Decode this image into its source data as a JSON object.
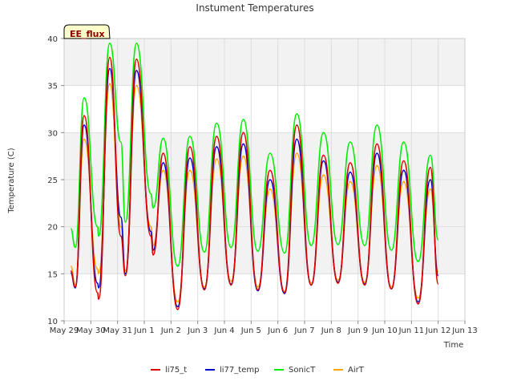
{
  "chart_data": {
    "type": "line",
    "title": "Instument Temperatures",
    "xlabel": "Time",
    "ylabel": "Temperature (C)",
    "badge": "EE_flux",
    "ylim": [
      10,
      40
    ],
    "xlim": [
      "2024-05-29",
      "2024-06-13"
    ],
    "yticks": [
      10,
      15,
      20,
      25,
      30,
      35,
      40
    ],
    "xticks": [
      {
        "date": "2024-05-29",
        "label": "May 29"
      },
      {
        "date": "2024-05-30",
        "label": "May 30"
      },
      {
        "date": "2024-05-31",
        "label": "May 31"
      },
      {
        "date": "2024-06-01",
        "label": "Jun 1"
      },
      {
        "date": "2024-06-02",
        "label": "Jun 2"
      },
      {
        "date": "2024-06-03",
        "label": "Jun 3"
      },
      {
        "date": "2024-06-04",
        "label": "Jun 4"
      },
      {
        "date": "2024-06-05",
        "label": "Jun 5"
      },
      {
        "date": "2024-06-06",
        "label": "Jun 6"
      },
      {
        "date": "2024-06-07",
        "label": "Jun 7"
      },
      {
        "date": "2024-06-08",
        "label": "Jun 8"
      },
      {
        "date": "2024-06-09",
        "label": "Jun 9"
      },
      {
        "date": "2024-06-10",
        "label": "Jun 10"
      },
      {
        "date": "2024-06-11",
        "label": "Jun 11"
      },
      {
        "date": "2024-06-12",
        "label": "Jun 12"
      },
      {
        "date": "2024-06-13",
        "label": "Jun 13"
      }
    ],
    "grid": true,
    "legend_position": "bottom",
    "series": [
      {
        "name": "li75_t",
        "color": "#dd0000",
        "points": [
          [
            "2024-05-29 06:00",
            15.3
          ],
          [
            "2024-05-29 10:00",
            13.6
          ],
          [
            "2024-05-29 18:00",
            31.8
          ],
          [
            "2024-05-30 06:00",
            13.0
          ],
          [
            "2024-05-30 07:00",
            12.3
          ],
          [
            "2024-05-30 17:00",
            38.0
          ],
          [
            "2024-05-31 03:00",
            19.0
          ],
          [
            "2024-05-31 07:00",
            14.8
          ],
          [
            "2024-05-31 17:00",
            37.8
          ],
          [
            "2024-06-01 06:00",
            19.0
          ],
          [
            "2024-06-01 08:00",
            17.0
          ],
          [
            "2024-06-01 17:00",
            27.8
          ],
          [
            "2024-06-02 06:00",
            11.2
          ],
          [
            "2024-06-02 17:00",
            28.5
          ],
          [
            "2024-06-03 06:00",
            13.3
          ],
          [
            "2024-06-03 17:00",
            29.6
          ],
          [
            "2024-06-04 06:00",
            13.8
          ],
          [
            "2024-06-04 17:00",
            30.0
          ],
          [
            "2024-06-05 06:00",
            13.3
          ],
          [
            "2024-06-05 17:00",
            26.0
          ],
          [
            "2024-06-06 06:00",
            13.0
          ],
          [
            "2024-06-06 17:00",
            30.8
          ],
          [
            "2024-06-07 06:00",
            13.8
          ],
          [
            "2024-06-07 17:00",
            27.6
          ],
          [
            "2024-06-08 06:00",
            14.0
          ],
          [
            "2024-06-08 17:00",
            26.8
          ],
          [
            "2024-06-09 06:00",
            13.8
          ],
          [
            "2024-06-09 17:00",
            28.8
          ],
          [
            "2024-06-10 06:00",
            13.4
          ],
          [
            "2024-06-10 17:00",
            27.0
          ],
          [
            "2024-06-11 06:00",
            11.8
          ],
          [
            "2024-06-11 17:00",
            26.3
          ],
          [
            "2024-06-12 00:00",
            13.9
          ]
        ]
      },
      {
        "name": "li77_temp",
        "color": "#0000cc",
        "points": [
          [
            "2024-05-29 06:00",
            15.1
          ],
          [
            "2024-05-29 10:00",
            13.5
          ],
          [
            "2024-05-29 18:00",
            30.8
          ],
          [
            "2024-05-30 06:00",
            14.0
          ],
          [
            "2024-05-30 07:00",
            13.5
          ],
          [
            "2024-05-30 17:00",
            36.8
          ],
          [
            "2024-05-31 03:00",
            21.0
          ],
          [
            "2024-05-31 07:00",
            15.0
          ],
          [
            "2024-05-31 17:00",
            36.6
          ],
          [
            "2024-06-01 06:00",
            19.5
          ],
          [
            "2024-06-01 08:00",
            17.5
          ],
          [
            "2024-06-01 17:00",
            26.8
          ],
          [
            "2024-06-02 06:00",
            11.5
          ],
          [
            "2024-06-02 17:00",
            27.3
          ],
          [
            "2024-06-03 06:00",
            13.4
          ],
          [
            "2024-06-03 17:00",
            28.5
          ],
          [
            "2024-06-04 06:00",
            13.9
          ],
          [
            "2024-06-04 17:00",
            28.8
          ],
          [
            "2024-06-05 06:00",
            13.2
          ],
          [
            "2024-06-05 17:00",
            25.0
          ],
          [
            "2024-06-06 06:00",
            12.9
          ],
          [
            "2024-06-06 17:00",
            29.3
          ],
          [
            "2024-06-07 06:00",
            13.8
          ],
          [
            "2024-06-07 17:00",
            27.0
          ],
          [
            "2024-06-08 06:00",
            14.1
          ],
          [
            "2024-06-08 17:00",
            25.8
          ],
          [
            "2024-06-09 06:00",
            13.9
          ],
          [
            "2024-06-09 17:00",
            27.8
          ],
          [
            "2024-06-10 06:00",
            13.4
          ],
          [
            "2024-06-10 17:00",
            26.0
          ],
          [
            "2024-06-11 06:00",
            12.0
          ],
          [
            "2024-06-11 17:00",
            25.0
          ],
          [
            "2024-06-12 00:00",
            14.8
          ]
        ]
      },
      {
        "name": "SonicT",
        "color": "#00ee00",
        "points": [
          [
            "2024-05-29 06:00",
            19.8
          ],
          [
            "2024-05-29 10:00",
            17.8
          ],
          [
            "2024-05-29 18:00",
            33.7
          ],
          [
            "2024-05-30 06:00",
            20.0
          ],
          [
            "2024-05-30 07:00",
            19.0
          ],
          [
            "2024-05-30 17:00",
            39.5
          ],
          [
            "2024-05-31 03:00",
            29.0
          ],
          [
            "2024-05-31 07:00",
            20.5
          ],
          [
            "2024-05-31 17:00",
            39.5
          ],
          [
            "2024-06-01 06:00",
            23.5
          ],
          [
            "2024-06-01 08:00",
            22.0
          ],
          [
            "2024-06-01 17:00",
            29.4
          ],
          [
            "2024-06-02 06:00",
            15.8
          ],
          [
            "2024-06-02 17:00",
            29.6
          ],
          [
            "2024-06-03 06:00",
            17.3
          ],
          [
            "2024-06-03 17:00",
            31.0
          ],
          [
            "2024-06-04 06:00",
            17.8
          ],
          [
            "2024-06-04 17:00",
            31.4
          ],
          [
            "2024-06-05 06:00",
            17.4
          ],
          [
            "2024-06-05 17:00",
            27.8
          ],
          [
            "2024-06-06 06:00",
            17.2
          ],
          [
            "2024-06-06 17:00",
            32.0
          ],
          [
            "2024-06-07 06:00",
            18.0
          ],
          [
            "2024-06-07 17:00",
            30.0
          ],
          [
            "2024-06-08 06:00",
            18.1
          ],
          [
            "2024-06-08 17:00",
            29.0
          ],
          [
            "2024-06-09 06:00",
            18.0
          ],
          [
            "2024-06-09 17:00",
            30.8
          ],
          [
            "2024-06-10 06:00",
            17.5
          ],
          [
            "2024-06-10 17:00",
            29.0
          ],
          [
            "2024-06-11 06:00",
            16.3
          ],
          [
            "2024-06-11 17:00",
            27.6
          ],
          [
            "2024-06-12 00:00",
            18.6
          ]
        ]
      },
      {
        "name": "AirT",
        "color": "#ffa500",
        "points": [
          [
            "2024-05-29 06:00",
            15.8
          ],
          [
            "2024-05-29 10:00",
            13.8
          ],
          [
            "2024-05-29 18:00",
            29.3
          ],
          [
            "2024-05-30 06:00",
            15.5
          ],
          [
            "2024-05-30 07:00",
            15.0
          ],
          [
            "2024-05-30 17:00",
            35.2
          ],
          [
            "2024-05-31 03:00",
            20.0
          ],
          [
            "2024-05-31 07:00",
            15.3
          ],
          [
            "2024-05-31 17:00",
            35.0
          ],
          [
            "2024-06-01 06:00",
            20.0
          ],
          [
            "2024-06-01 08:00",
            18.0
          ],
          [
            "2024-06-01 17:00",
            26.0
          ],
          [
            "2024-06-02 06:00",
            12.0
          ],
          [
            "2024-06-02 17:00",
            26.0
          ],
          [
            "2024-06-03 06:00",
            13.6
          ],
          [
            "2024-06-03 17:00",
            27.2
          ],
          [
            "2024-06-04 06:00",
            14.2
          ],
          [
            "2024-06-04 17:00",
            27.5
          ],
          [
            "2024-06-05 06:00",
            13.6
          ],
          [
            "2024-06-05 17:00",
            24.0
          ],
          [
            "2024-06-06 06:00",
            13.1
          ],
          [
            "2024-06-06 17:00",
            27.8
          ],
          [
            "2024-06-07 06:00",
            14.0
          ],
          [
            "2024-06-07 17:00",
            25.5
          ],
          [
            "2024-06-08 06:00",
            14.3
          ],
          [
            "2024-06-08 17:00",
            24.8
          ],
          [
            "2024-06-09 06:00",
            14.1
          ],
          [
            "2024-06-09 17:00",
            26.5
          ],
          [
            "2024-06-10 06:00",
            13.6
          ],
          [
            "2024-06-10 17:00",
            24.8
          ],
          [
            "2024-06-11 06:00",
            12.4
          ],
          [
            "2024-06-11 17:00",
            24.0
          ],
          [
            "2024-06-12 00:00",
            15.2
          ]
        ]
      }
    ]
  }
}
